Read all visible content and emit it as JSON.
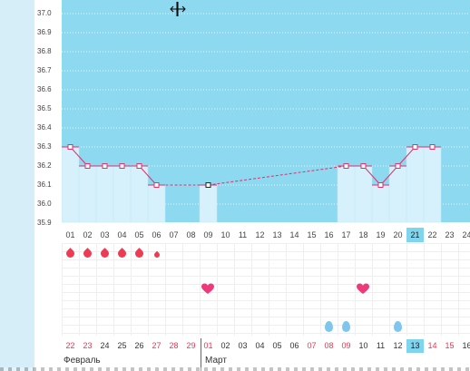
{
  "y_axis": {
    "labels": [
      "37.0",
      "36.9",
      "36.8",
      "36.7",
      "36.6",
      "36.5",
      "36.4",
      "36.3",
      "36.2",
      "36.1",
      "36.0",
      "35.9"
    ]
  },
  "cursor": {
    "icon": "resize-horizontal-icon"
  },
  "chart_data": {
    "type": "bar",
    "categories": [
      "01",
      "02",
      "03",
      "04",
      "05",
      "06",
      "07",
      "08",
      "09",
      "10",
      "11",
      "12",
      "13",
      "14",
      "15",
      "16",
      "17",
      "18",
      "19",
      "20",
      "21",
      "22",
      "23",
      "24"
    ],
    "values": [
      36.3,
      36.2,
      36.2,
      36.2,
      36.2,
      36.1,
      null,
      null,
      36.1,
      null,
      null,
      null,
      null,
      null,
      null,
      null,
      36.2,
      36.2,
      36.1,
      36.2,
      36.3,
      36.3,
      null,
      null
    ],
    "ylim": [
      35.9,
      37.0
    ],
    "grid": true,
    "colors": {
      "background": "#8dd9f0",
      "bar": "#d6f1fb",
      "line": "#e0306a"
    }
  },
  "cycle_days": {
    "labels": [
      "01",
      "02",
      "03",
      "04",
      "05",
      "06",
      "07",
      "08",
      "09",
      "10",
      "11",
      "12",
      "13",
      "14",
      "15",
      "16",
      "17",
      "18",
      "19",
      "20",
      "21",
      "22",
      "23",
      "24"
    ],
    "current": "21"
  },
  "markers": {
    "bleeding_icon": "blood-drop-icon",
    "bleeding": [
      3,
      3,
      3,
      3,
      3,
      1
    ],
    "heart_icon": "heart-icon",
    "hearts": [
      "09",
      "18"
    ],
    "blue_icon": "blue-drop-icon",
    "blue": [
      "16",
      "17",
      "20"
    ]
  },
  "calendar": {
    "dates": [
      "22",
      "23",
      "24",
      "25",
      "26",
      "27",
      "28",
      "29",
      "01",
      "02",
      "03",
      "04",
      "05",
      "06",
      "07",
      "08",
      "09",
      "10",
      "11",
      "12",
      "13",
      "14",
      "15",
      "16"
    ],
    "weekend": [
      0,
      1,
      5,
      6,
      7,
      8,
      14,
      15,
      16,
      21,
      22
    ],
    "today": "13",
    "months": [
      "Февраль",
      "Март"
    ]
  }
}
